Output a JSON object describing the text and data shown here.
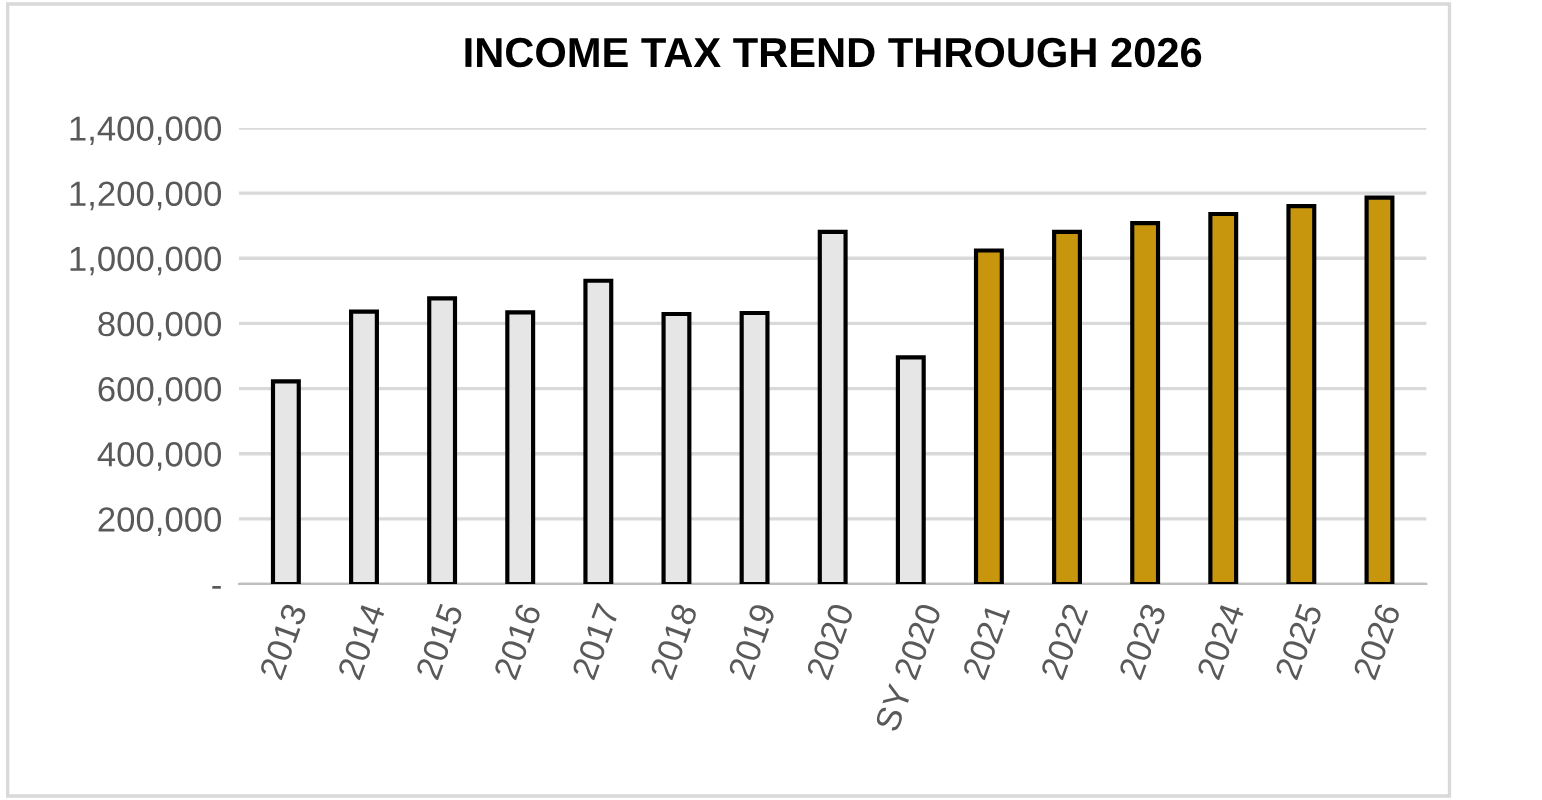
{
  "chart_data": {
    "type": "bar",
    "title": "INCOME TAX TREND THROUGH 2026",
    "categories": [
      "2013",
      "2014",
      "2015",
      "2016",
      "2017",
      "2018",
      "2019",
      "2020",
      "SY 2020",
      "2021",
      "2022",
      "2023",
      "2024",
      "2025",
      "2026"
    ],
    "values": [
      622000,
      836000,
      877000,
      834000,
      931000,
      829000,
      832000,
      1081000,
      696000,
      1024000,
      1081000,
      1108000,
      1136000,
      1160000,
      1186000
    ],
    "colors": [
      "#e6e6e6",
      "#e6e6e6",
      "#e6e6e6",
      "#e6e6e6",
      "#e6e6e6",
      "#e6e6e6",
      "#e6e6e6",
      "#e6e6e6",
      "#e6e6e6",
      "#c8960c",
      "#c8960c",
      "#c8960c",
      "#c8960c",
      "#c8960c",
      "#c8960c"
    ],
    "ylim": [
      0,
      1400000
    ],
    "yticks": [
      {
        "value": 0,
        "label": "-"
      },
      {
        "value": 200000,
        "label": "200,000"
      },
      {
        "value": 400000,
        "label": "400,000"
      },
      {
        "value": 600000,
        "label": "600,000"
      },
      {
        "value": 800000,
        "label": "800,000"
      },
      {
        "value": 1000000,
        "label": "1,000,000"
      },
      {
        "value": 1200000,
        "label": "1,200,000"
      },
      {
        "value": 1400000,
        "label": "1,400,000"
      }
    ],
    "grid": "y"
  }
}
